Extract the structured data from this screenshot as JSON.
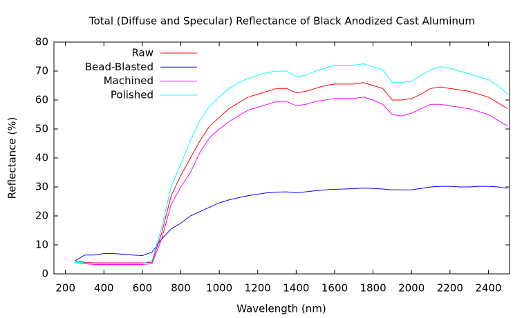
{
  "chart_data": {
    "type": "line",
    "title": "Total (Diffuse and Specular) Reflectance of Black Anodized Cast Aluminum",
    "x_label": "Wavelength (nm)",
    "y_label": "Reflectance (%)",
    "x": [
      250,
      300,
      350,
      400,
      450,
      500,
      550,
      600,
      650,
      700,
      750,
      800,
      850,
      900,
      950,
      1000,
      1050,
      1100,
      1150,
      1200,
      1250,
      1300,
      1350,
      1400,
      1450,
      1500,
      1550,
      1600,
      1650,
      1700,
      1750,
      1800,
      1850,
      1900,
      1950,
      2000,
      2050,
      2100,
      2150,
      2200,
      2250,
      2300,
      2350,
      2400,
      2450,
      2500
    ],
    "series": [
      {
        "name": "Raw",
        "color": "#ff0000",
        "values": [
          4.5,
          4,
          3.8,
          3.8,
          3.8,
          3.8,
          3.8,
          3.8,
          4,
          14,
          27,
          34,
          40,
          46,
          51,
          54,
          57,
          59,
          61,
          62,
          63,
          64,
          64,
          62.5,
          63,
          64,
          65,
          65.5,
          65.5,
          65.5,
          66,
          65,
          64,
          60,
          60,
          60.5,
          62,
          64,
          64.5,
          64,
          63.5,
          63,
          62,
          61,
          59,
          57
        ]
      },
      {
        "name": "Bead-Blasted",
        "color": "#0000ff",
        "values": [
          4.5,
          6.5,
          6.5,
          7,
          7,
          6.8,
          6.5,
          6.3,
          7.5,
          12,
          15.5,
          17.5,
          20,
          21.5,
          23,
          24.5,
          25.5,
          26.3,
          27,
          27.5,
          28,
          28.2,
          28.3,
          28,
          28.3,
          28.7,
          29,
          29.2,
          29.3,
          29.4,
          29.6,
          29.5,
          29.3,
          29,
          29,
          29,
          29.5,
          30,
          30.2,
          30.2,
          30,
          30,
          30.2,
          30.2,
          30,
          29.5
        ]
      },
      {
        "name": "Machined",
        "color": "#ff00ff",
        "values": [
          4,
          3.5,
          3.2,
          3.2,
          3.2,
          3.2,
          3.2,
          3.2,
          3.5,
          12,
          24,
          30,
          35,
          42,
          47,
          50,
          52.5,
          54.5,
          56.5,
          57.5,
          58.5,
          59.5,
          59.5,
          58,
          58.5,
          59.5,
          60,
          60.5,
          60.5,
          60.5,
          61,
          60,
          58.5,
          55,
          54.5,
          55.5,
          57,
          58.5,
          58.5,
          58,
          57.5,
          57,
          56,
          55,
          53,
          51
        ]
      },
      {
        "name": "Polished",
        "color": "#00ffff",
        "values": [
          4,
          3.8,
          3.6,
          3.6,
          3.6,
          3.6,
          3.6,
          3.6,
          4.5,
          16,
          30,
          38,
          46,
          53,
          58,
          61,
          64,
          66,
          67.5,
          68.5,
          69.5,
          70,
          70,
          68,
          68.5,
          70,
          71,
          72,
          72,
          72,
          72.5,
          71.5,
          70.5,
          66,
          66,
          66.5,
          68.5,
          70.5,
          71.5,
          71,
          70,
          69,
          68,
          67,
          65,
          62
        ]
      }
    ],
    "xlim": [
      140,
      2510
    ],
    "xticks": [
      200,
      400,
      600,
      800,
      1000,
      1200,
      1400,
      1600,
      1800,
      2000,
      2200,
      2400
    ],
    "ylim": [
      0,
      80
    ],
    "yticks": [
      0,
      10,
      20,
      30,
      40,
      50,
      60,
      70,
      80
    ],
    "grid": false,
    "legend": "top-left"
  }
}
